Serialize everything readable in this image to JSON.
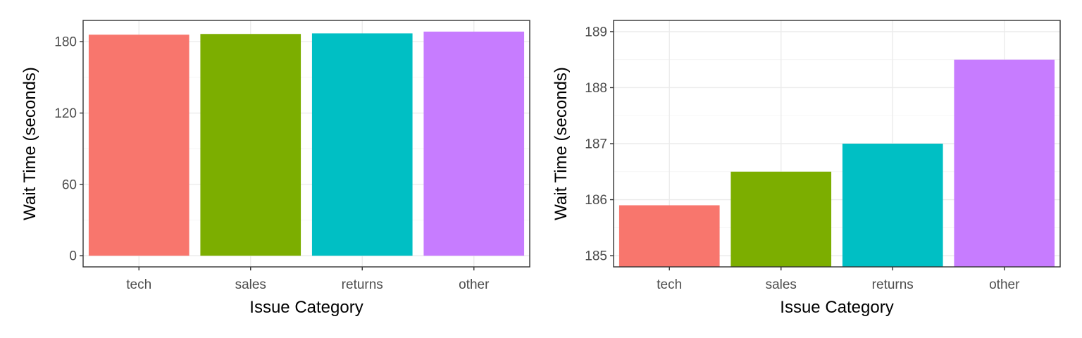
{
  "chart_data": [
    {
      "type": "bar",
      "categories": [
        "tech",
        "sales",
        "returns",
        "other"
      ],
      "values": [
        185.9,
        186.5,
        187.0,
        188.5
      ],
      "colors": [
        "#F8766D",
        "#7CAE00",
        "#00BFC4",
        "#C77CFF"
      ],
      "xlabel": "Issue Category",
      "ylabel": "Wait Time (seconds)",
      "ylim": [
        -9.4,
        197.9
      ],
      "yticks": [
        0,
        60,
        120,
        180
      ],
      "ytick_labels": [
        "0",
        "60",
        "120",
        "180"
      ],
      "grid": true
    },
    {
      "type": "bar",
      "categories": [
        "tech",
        "sales",
        "returns",
        "other"
      ],
      "values": [
        185.9,
        186.5,
        187.0,
        188.5
      ],
      "colors": [
        "#F8766D",
        "#7CAE00",
        "#00BFC4",
        "#C77CFF"
      ],
      "xlabel": "Issue Category",
      "ylabel": "Wait Time (seconds)",
      "ylim": [
        184.8,
        189.2
      ],
      "yticks": [
        185,
        186,
        187,
        188,
        189
      ],
      "ytick_labels": [
        "185",
        "186",
        "187",
        "188",
        "189"
      ],
      "grid": true
    }
  ]
}
